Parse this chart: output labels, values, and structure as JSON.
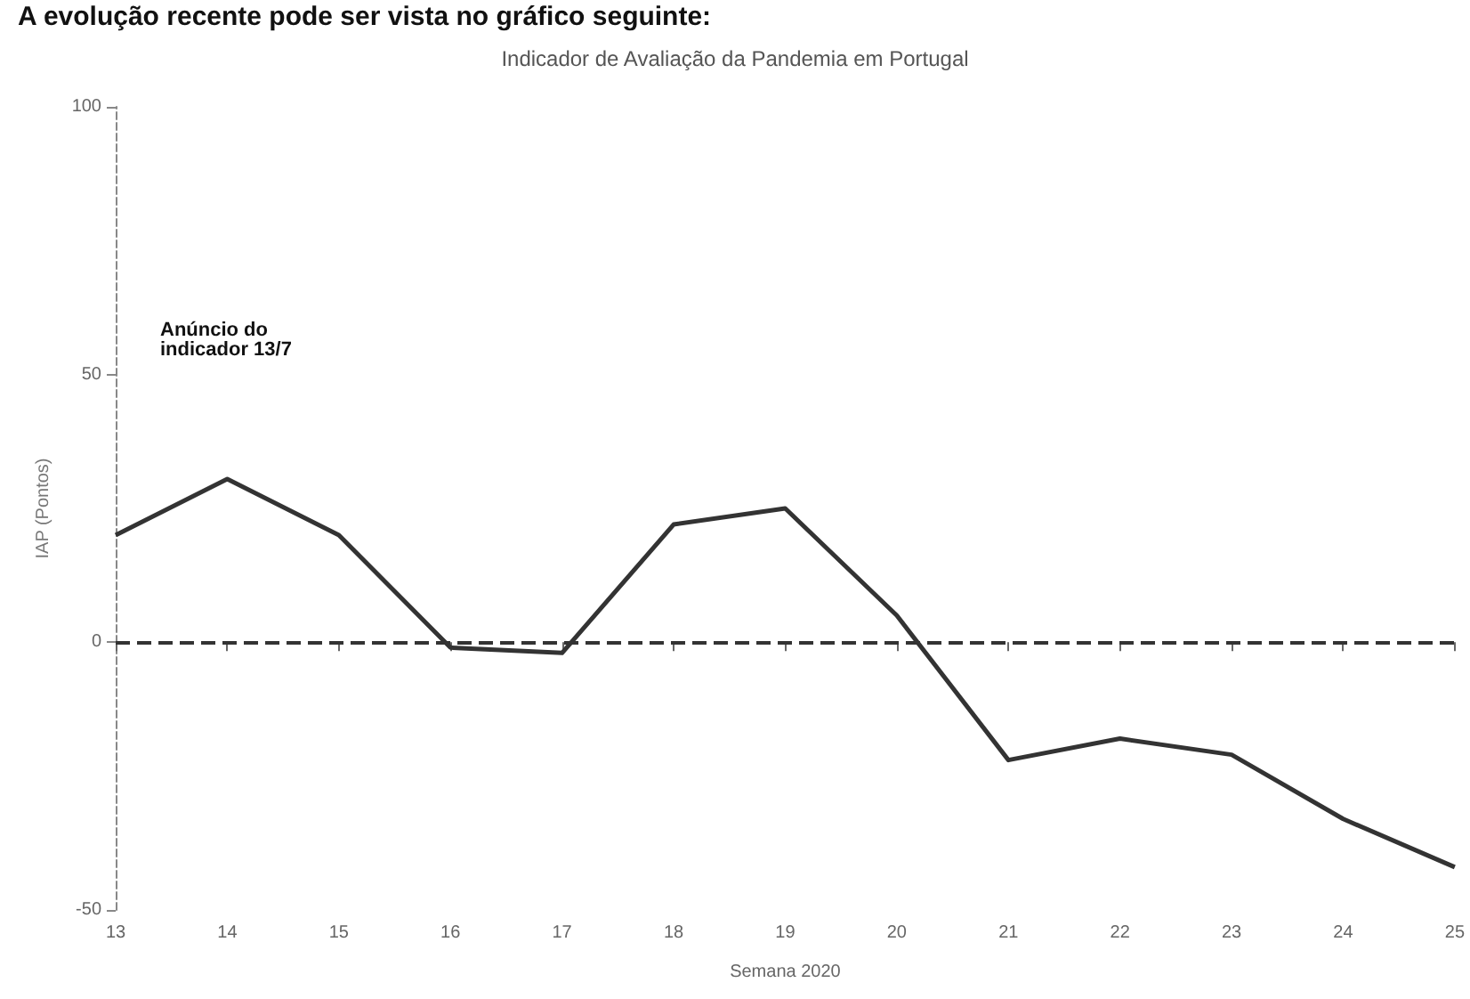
{
  "chart_data": {
    "type": "line",
    "title": "Indicador de Avaliação da Pandemia em Portugal",
    "xlabel": "Semana 2020",
    "ylabel": "IAP (Pontos)",
    "annotations": [
      "A evolução recente pode ser vista no gráfico seguinte:",
      "Anúncio do indicador 13/7"
    ],
    "categories": [
      "13",
      "14",
      "15",
      "16",
      "17",
      "18",
      "19",
      "20",
      "21",
      "22",
      "23",
      "24",
      "25"
    ],
    "series": [
      {
        "color": "#333333",
        "values": [
          20,
          30.5,
          20,
          -1,
          -2,
          22,
          25,
          5,
          -22,
          -18,
          -21,
          -33,
          -42
        ]
      }
    ],
    "ylim": [
      -50,
      100
    ],
    "yticks": [
      -50,
      0,
      50,
      100
    ],
    "ref_lines": [
      {
        "axis": "y",
        "value": 0,
        "color": "#333333",
        "line_style": "dashed"
      }
    ],
    "grid": false,
    "marker": "none",
    "line_style": "solid"
  }
}
